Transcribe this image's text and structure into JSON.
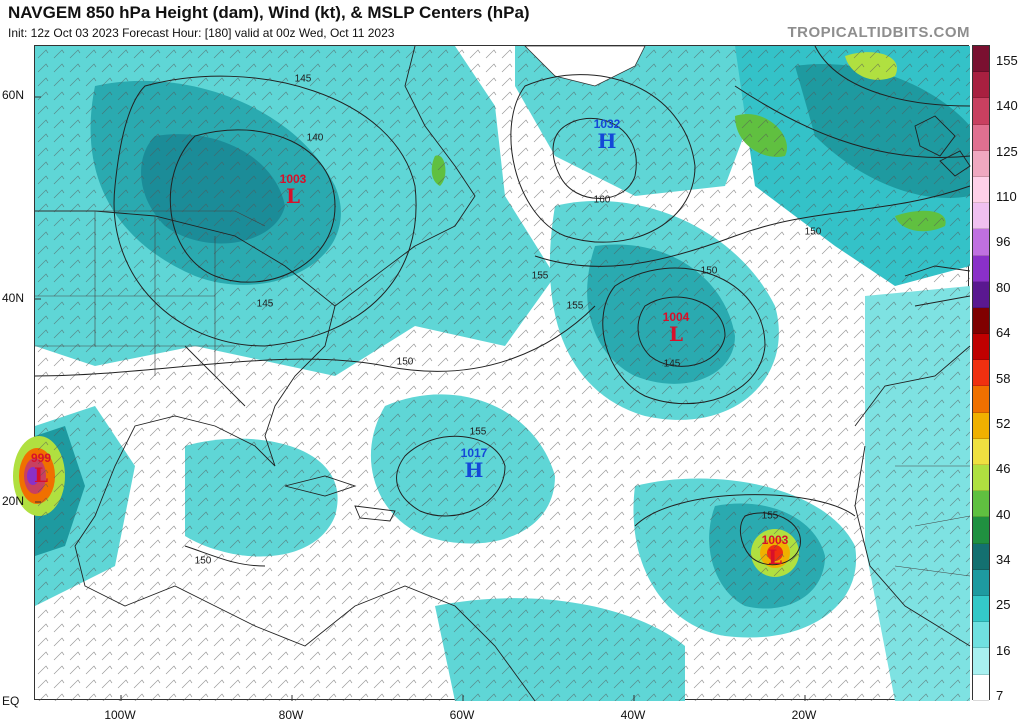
{
  "header": {
    "title": "NAVGEM 850 hPa Height (dam), Wind (kt), & MSLP Centers (hPa)",
    "subtitle": "Init: 12z Oct 03 2023   Forecast Hour: [180]   valid at 00z Wed, Oct 11 2023",
    "brand": "TROPICALTIDBITS.COM"
  },
  "axes": {
    "lat_labels": [
      "60N",
      "40N",
      "20N",
      "EQ"
    ],
    "lon_labels": [
      "100W",
      "80W",
      "60W",
      "40W",
      "20W"
    ]
  },
  "colorbar": {
    "labels": [
      "155",
      "140",
      "125",
      "110",
      "96",
      "80",
      "64",
      "58",
      "52",
      "46",
      "40",
      "34",
      "25",
      "16",
      "7"
    ],
    "colors": [
      "#7a1030",
      "#a82040",
      "#c84060",
      "#e07090",
      "#f0a8c0",
      "#ffd0e8",
      "#f0c0f0",
      "#c070e0",
      "#8a30c8",
      "#5a1890",
      "#800000",
      "#c00000",
      "#f03010",
      "#f07000",
      "#f0b000",
      "#f0e040",
      "#b0e040",
      "#60c040",
      "#209040",
      "#147070",
      "#1e9aa0",
      "#34c8c8",
      "#70e0e0",
      "#a8f0f0",
      "#ffffff"
    ]
  },
  "pressure_centers": [
    {
      "type": "L",
      "value": "1003",
      "color": "#d8102a"
    },
    {
      "type": "H",
      "value": "1032",
      "color": "#1448d8"
    },
    {
      "type": "L",
      "value": "1004",
      "color": "#d8102a"
    },
    {
      "type": "H",
      "value": "1017",
      "color": "#1448d8"
    },
    {
      "type": "L",
      "value": "1003",
      "color": "#d8102a"
    },
    {
      "type": "L",
      "value": "999",
      "color": "#d8102a"
    }
  ],
  "contour_labels": [
    "145",
    "140",
    "145",
    "150",
    "155",
    "160",
    "150",
    "150",
    "155",
    "145",
    "155",
    "150",
    "155"
  ]
}
